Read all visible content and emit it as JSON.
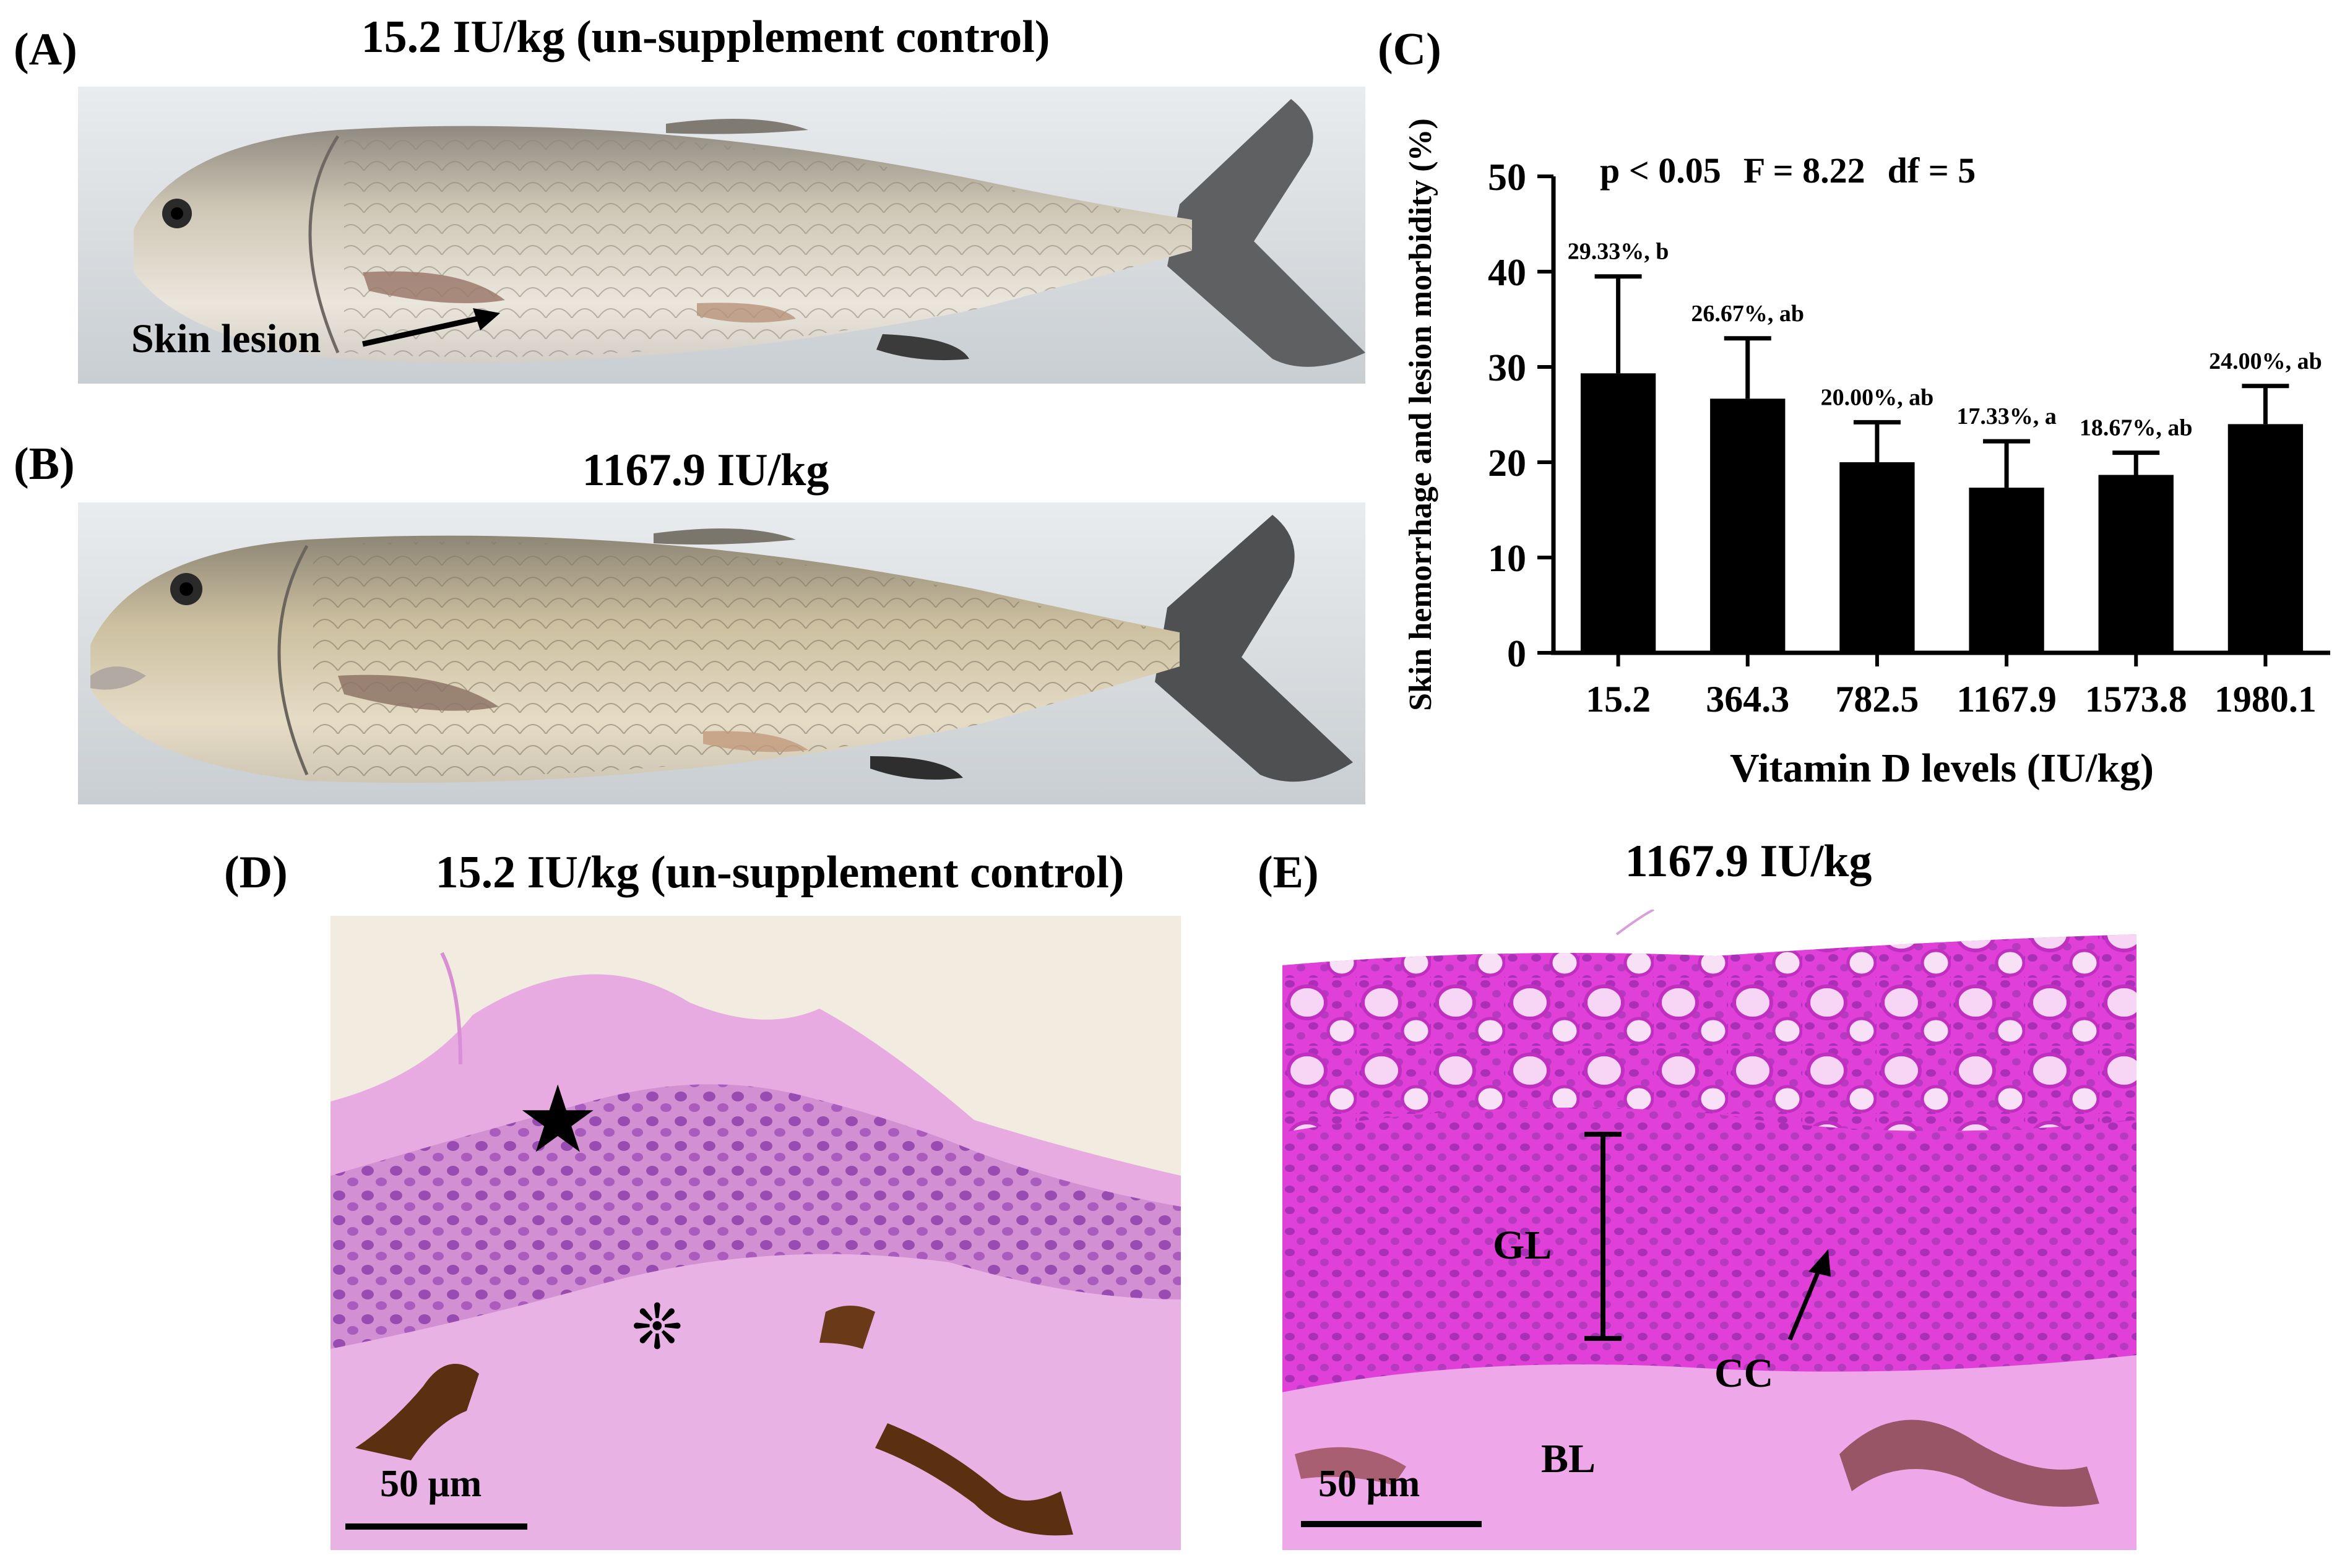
{
  "panels": {
    "a": {
      "letter": "(A)",
      "title": "15.2 IU/kg (un-supplement control)",
      "annotation": "Skin lesion"
    },
    "b": {
      "letter": "(B)",
      "title": "1167.9 IU/kg"
    },
    "c": {
      "letter": "(C)"
    },
    "d": {
      "letter": "(D)",
      "title": "15.2 IU/kg (un-supplement control)",
      "scale_bar": "50 μm",
      "markers": [
        "★",
        "❊"
      ]
    },
    "e": {
      "letter": "(E)",
      "title": "1167.9 IU/kg",
      "scale_bar": "50 μm",
      "labels": {
        "gl": "GL",
        "cc": "CC",
        "bl": "BL"
      }
    }
  },
  "colors": {
    "bar_fill": "#000000",
    "he_stain_pink": "#e59be0",
    "he_stain_magenta": "#e040d8",
    "nuclei_purple": "#8a3aa8",
    "pigment_brown": "#5a3010"
  },
  "chart_data": {
    "type": "bar",
    "title": "",
    "stats_annotation": {
      "p": "p < 0.05",
      "f": "F = 8.22",
      "df": "df = 5"
    },
    "xlabel": "Vitamin D levels (IU/kg)",
    "ylabel": "Skin hemorrhage and lesion morbidity (%)",
    "ylim": [
      0,
      50
    ],
    "yticks": [
      0,
      10,
      20,
      30,
      40,
      50
    ],
    "categories": [
      "15.2",
      "364.3",
      "782.5",
      "1167.9",
      "1573.8",
      "1980.1"
    ],
    "values": [
      29.33,
      26.67,
      20.0,
      17.33,
      18.67,
      24.0
    ],
    "error_upper": [
      39.5,
      33.0,
      24.2,
      22.2,
      21.0,
      28.0
    ],
    "data_labels": [
      "29.33%, b",
      "26.67%, ab",
      "20.00%, ab",
      "17.33%, a",
      "18.67%, ab",
      "24.00%, ab"
    ],
    "grid": false,
    "legend": "none"
  }
}
